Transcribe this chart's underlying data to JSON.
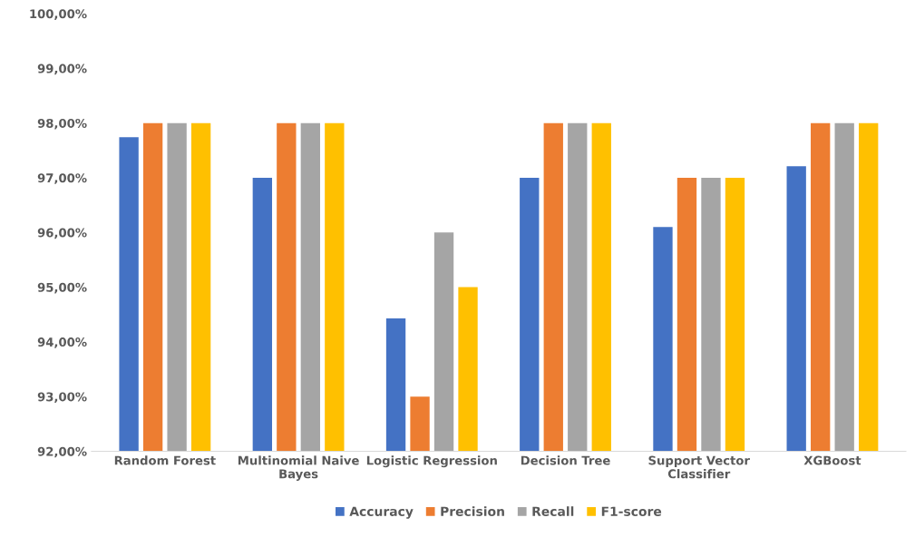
{
  "chart_data": {
    "type": "bar",
    "categories": [
      "Random Forest",
      "Multinomial Naive\nBayes",
      "Logistic Regression",
      "Decision Tree",
      "Support Vector\nClassifier",
      "XGBoost"
    ],
    "series": [
      {
        "name": "Accuracy",
        "color": "#4472c4",
        "values": [
          97.74,
          97.0,
          94.43,
          97.0,
          96.1,
          97.21
        ]
      },
      {
        "name": "Precision",
        "color": "#ed7d31",
        "values": [
          98,
          98,
          93,
          98,
          97,
          98
        ]
      },
      {
        "name": "Recall",
        "color": "#a5a5a5",
        "values": [
          98,
          98,
          96,
          98,
          97,
          98
        ]
      },
      {
        "name": "F1-score",
        "color": "#ffc000",
        "values": [
          98,
          98,
          95,
          98,
          97,
          98
        ]
      }
    ],
    "ylim": [
      92,
      100
    ],
    "yticks": [
      {
        "value": 92,
        "label": "92,00%"
      },
      {
        "value": 93,
        "label": "93,00%"
      },
      {
        "value": 94,
        "label": "94,00%"
      },
      {
        "value": 95,
        "label": "95,00%"
      },
      {
        "value": 96,
        "label": "96,00%"
      },
      {
        "value": 97,
        "label": "97,00%"
      },
      {
        "value": 98,
        "label": "98,00%"
      },
      {
        "value": 99,
        "label": "99,00%"
      },
      {
        "value": 100,
        "label": "100,00%"
      }
    ],
    "grid": false,
    "legend": "bottom"
  }
}
